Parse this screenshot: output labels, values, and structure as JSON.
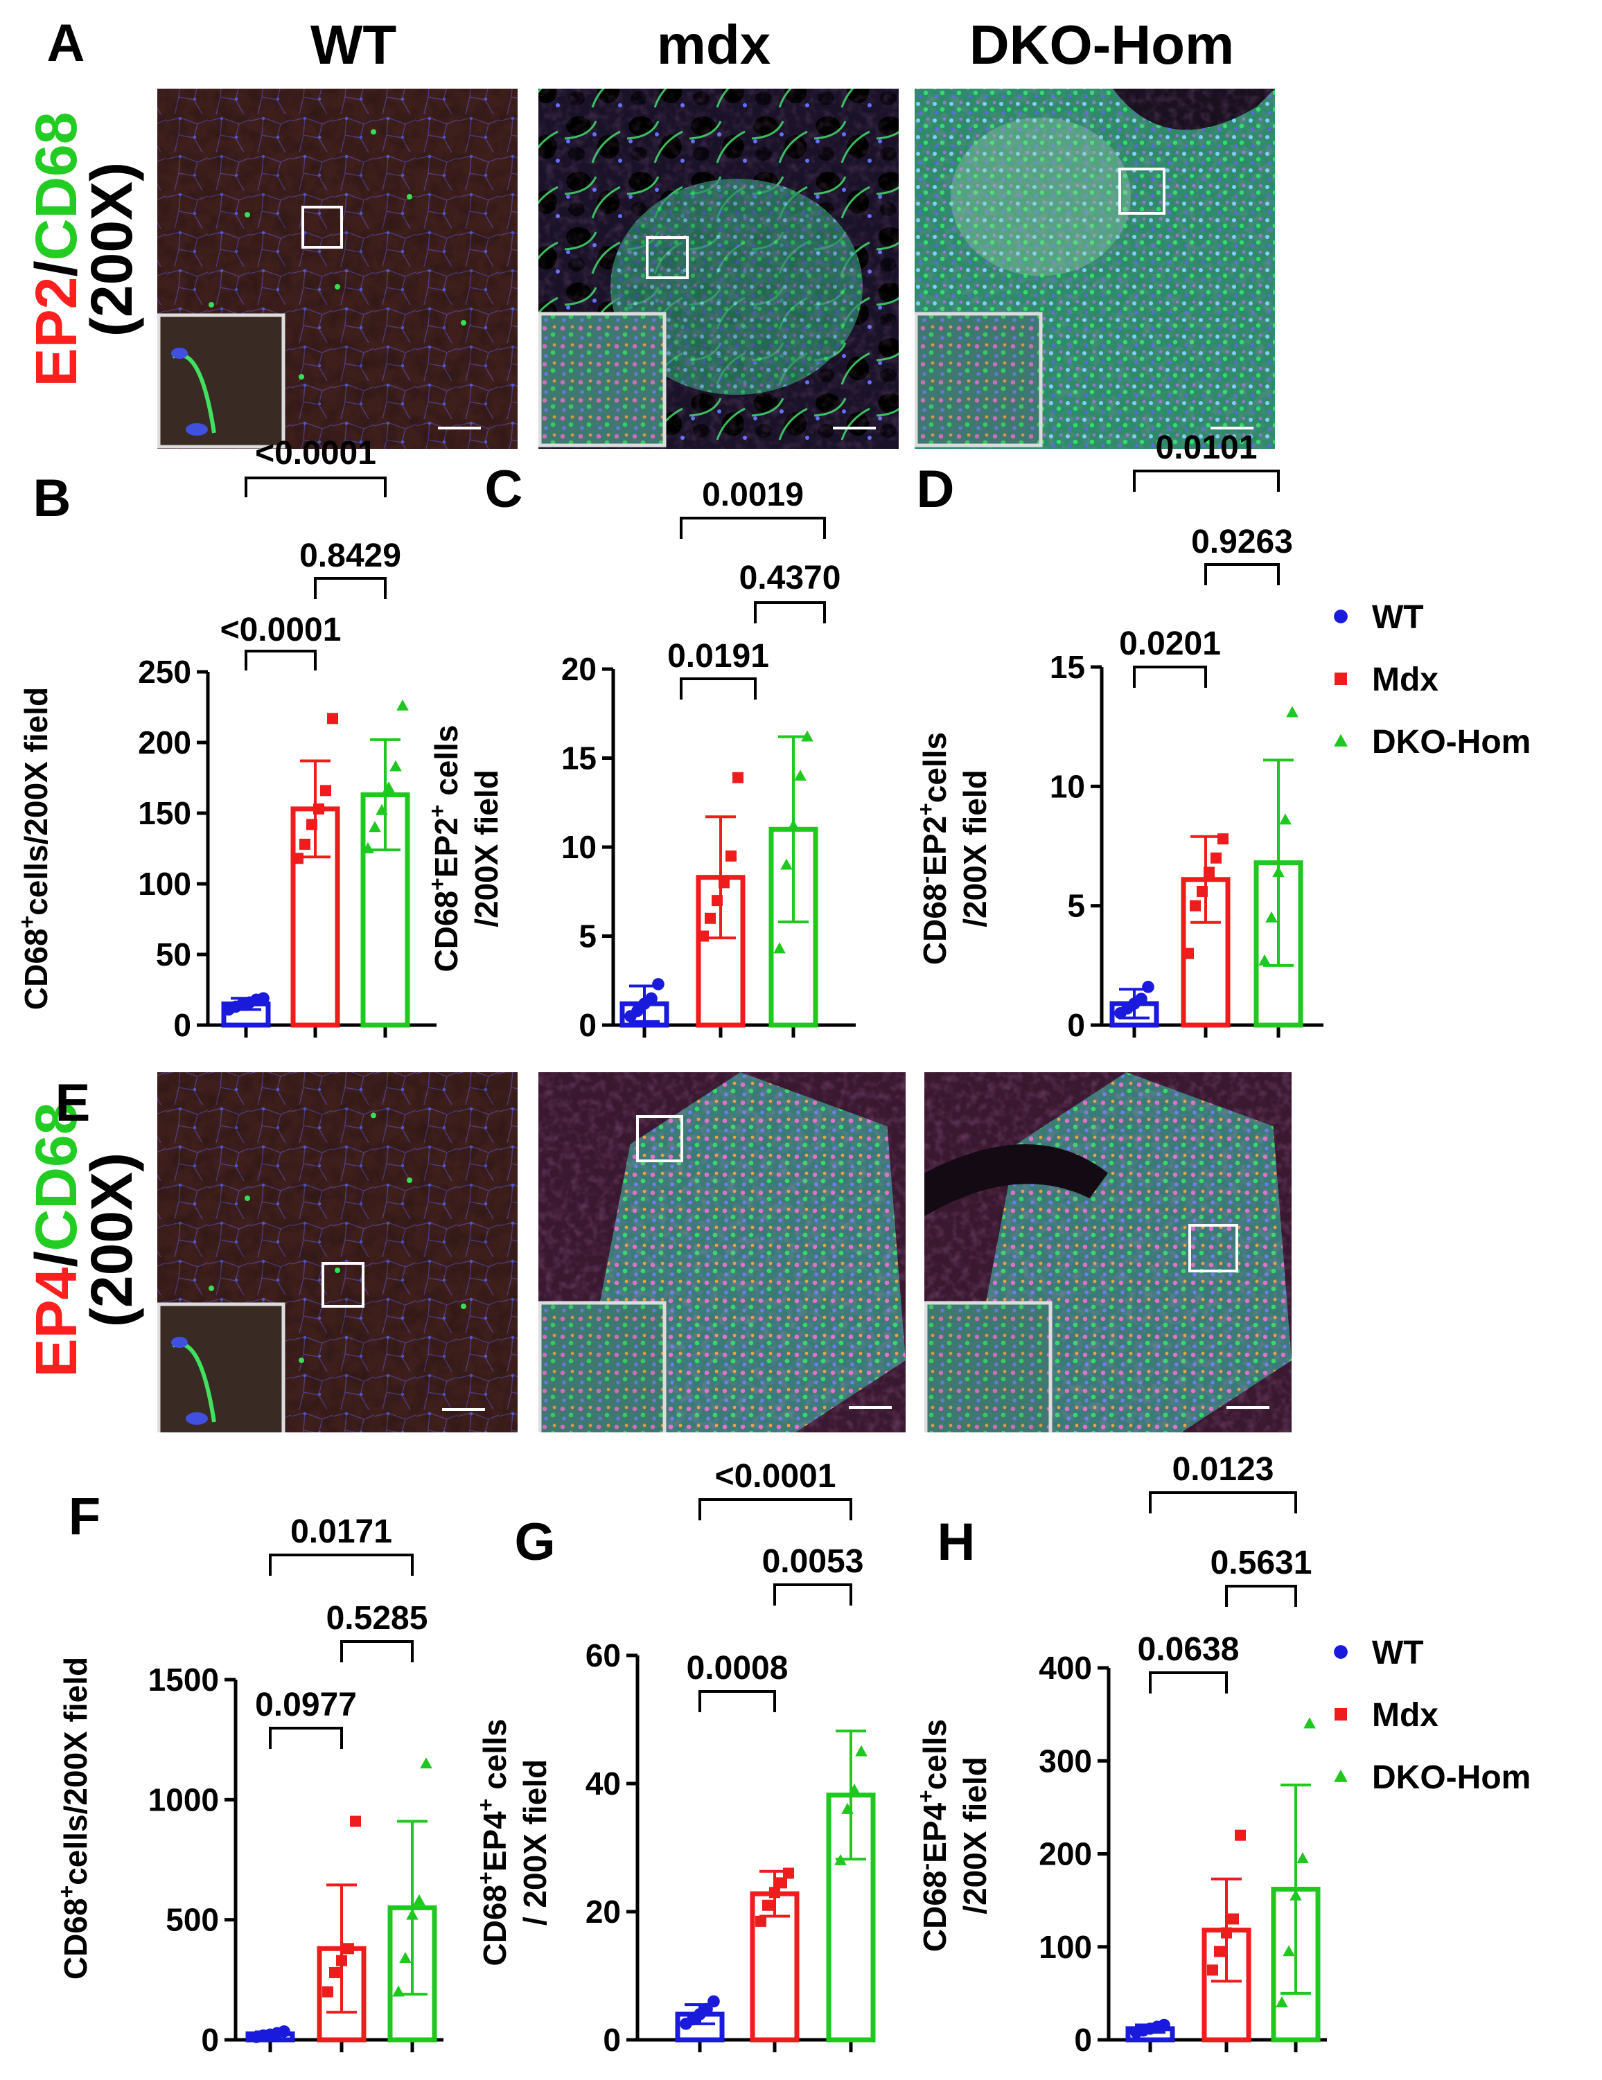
{
  "colors": {
    "WT": "#1a1adc",
    "Mdx": "#ee1c1c",
    "DKO-Hom": "#1ec81e",
    "red": "#ff1f1f",
    "green": "#22cc22",
    "frame": "#dddddd",
    "scale_bar": "#ffffff"
  },
  "header": {
    "panel_A": "A",
    "col_wt": "WT",
    "col_mdx": "mdx",
    "col_dko": "DKO-Hom"
  },
  "row_a": {
    "panel": "A",
    "stain_a": "EP2",
    "slash": "/",
    "stain_b": "CD68",
    "mag": "(200X)"
  },
  "row_e": {
    "panel": "E",
    "stain_a": "EP4",
    "slash": "/",
    "stain_b": "CD68",
    "mag": "(200X)"
  },
  "micrographs": [
    {
      "row": "EP2/CD68",
      "group": "WT",
      "tissue": "normal muscle, sparse CD68 staining"
    },
    {
      "row": "EP2/CD68",
      "group": "mdx",
      "tissue": "inflamed muscle, dense CD68 staining"
    },
    {
      "row": "EP2/CD68",
      "group": "DKO-Hom",
      "tissue": "inflamed muscle, very dense CD68 staining"
    },
    {
      "row": "EP4/CD68",
      "group": "WT",
      "tissue": "normal muscle, sparse CD68 staining"
    },
    {
      "row": "EP4/CD68",
      "group": "mdx",
      "tissue": "inflamed muscle, dense CD68 and EP4 staining"
    },
    {
      "row": "EP4/CD68",
      "group": "DKO-Hom",
      "tissue": "inflamed muscle, dense CD68 and EP4 staining"
    }
  ],
  "legends": [
    {
      "items": [
        {
          "name": "WT",
          "marker": "circle"
        },
        {
          "name": "Mdx",
          "marker": "square"
        },
        {
          "name": "DKO-Hom",
          "marker": "triangle"
        }
      ]
    },
    {
      "items": [
        {
          "name": "WT",
          "marker": "circle"
        },
        {
          "name": "Mdx",
          "marker": "square"
        },
        {
          "name": "DKO-Hom",
          "marker": "triangle"
        }
      ]
    }
  ],
  "chart_data": [
    {
      "panel": "B",
      "type": "bar",
      "categories": [
        "WT",
        "Mdx",
        "DKO-Hom"
      ],
      "ylabel_parts": [
        {
          "t": "CD68"
        },
        {
          "t": "+",
          "sup": true
        },
        {
          "t": "cells/200X field"
        }
      ],
      "ylim": [
        0,
        250
      ],
      "ticks": [
        0,
        50,
        100,
        150,
        200,
        250
      ],
      "series": [
        {
          "name": "WT",
          "mean": 15,
          "sd": 4,
          "points": [
            11,
            13,
            15,
            16,
            18,
            19
          ]
        },
        {
          "name": "Mdx",
          "mean": 153,
          "sd": 34,
          "points": [
            118,
            128,
            142,
            153,
            166,
            217
          ]
        },
        {
          "name": "DKO-Hom",
          "mean": 163,
          "sd": 39,
          "points": [
            125,
            140,
            152,
            168,
            183,
            226
          ]
        }
      ],
      "pvalues": [
        {
          "label": "<0.0001",
          "from": 0,
          "to": 1
        },
        {
          "label": "0.8429",
          "from": 1,
          "to": 2
        },
        {
          "label": "<0.0001",
          "from": 0,
          "to": 2
        }
      ]
    },
    {
      "panel": "C",
      "type": "bar",
      "categories": [
        "WT",
        "Mdx",
        "DKO-Hom"
      ],
      "ylabel_parts": [
        {
          "t": "CD68"
        },
        {
          "t": "+",
          "sup": true
        },
        {
          "t": "EP2"
        },
        {
          "t": "+",
          "sup": true
        },
        {
          "t": " cells"
        }
      ],
      "ylabel2": "/200X field",
      "ylim": [
        0,
        20
      ],
      "ticks": [
        0,
        5,
        10,
        15,
        20
      ],
      "series": [
        {
          "name": "WT",
          "mean": 1.2,
          "sd": 1.0,
          "points": [
            0.5,
            0.8,
            1.2,
            1.5,
            2.3
          ]
        },
        {
          "name": "Mdx",
          "mean": 8.3,
          "sd": 3.4,
          "points": [
            5.0,
            6.0,
            7.0,
            8.0,
            9.5,
            13.9
          ]
        },
        {
          "name": "DKO-Hom",
          "mean": 11.0,
          "sd": 5.2,
          "points": [
            4.3,
            9.0,
            11.2,
            14.0,
            16.2
          ]
        }
      ],
      "pvalues": [
        {
          "label": "0.0191",
          "from": 0,
          "to": 1
        },
        {
          "label": "0.4370",
          "from": 1,
          "to": 2
        },
        {
          "label": "0.0019",
          "from": 0,
          "to": 2
        }
      ]
    },
    {
      "panel": "D",
      "type": "bar",
      "categories": [
        "WT",
        "Mdx",
        "DKO-Hom"
      ],
      "ylabel_parts": [
        {
          "t": "CD68"
        },
        {
          "t": "-",
          "sup": true
        },
        {
          "t": "EP2"
        },
        {
          "t": "+",
          "sup": true
        },
        {
          "t": "cells"
        }
      ],
      "ylabel2": "/200X field",
      "ylim": [
        0,
        15
      ],
      "ticks": [
        0,
        5,
        10,
        15
      ],
      "series": [
        {
          "name": "WT",
          "mean": 0.9,
          "sd": 0.6,
          "points": [
            0.5,
            0.7,
            0.9,
            1.1,
            1.6
          ]
        },
        {
          "name": "Mdx",
          "mean": 6.1,
          "sd": 1.8,
          "points": [
            3.0,
            5.0,
            5.6,
            6.4,
            7.0,
            7.8
          ]
        },
        {
          "name": "DKO-Hom",
          "mean": 6.8,
          "sd": 4.3,
          "points": [
            2.7,
            4.5,
            6.4,
            8.6,
            13.1
          ]
        }
      ],
      "pvalues": [
        {
          "label": "0.0201",
          "from": 0,
          "to": 1
        },
        {
          "label": "0.9263",
          "from": 1,
          "to": 2
        },
        {
          "label": "0.0101",
          "from": 0,
          "to": 2
        }
      ]
    },
    {
      "panel": "F",
      "type": "bar",
      "categories": [
        "WT",
        "Mdx",
        "DKO-Hom"
      ],
      "ylabel_parts": [
        {
          "t": "CD68"
        },
        {
          "t": "+",
          "sup": true
        },
        {
          "t": "cells/200X field"
        }
      ],
      "ylim": [
        0,
        1500
      ],
      "ticks": [
        0,
        500,
        1000,
        1500
      ],
      "series": [
        {
          "name": "WT",
          "mean": 25,
          "sd": 8,
          "points": [
            12,
            18,
            22,
            28,
            35
          ]
        },
        {
          "name": "Mdx",
          "mean": 380,
          "sd": 265,
          "points": [
            200,
            280,
            330,
            380,
            910
          ]
        },
        {
          "name": "DKO-Hom",
          "mean": 550,
          "sd": 360,
          "points": [
            200,
            340,
            520,
            580,
            1150
          ]
        }
      ],
      "pvalues": [
        {
          "label": "0.0977",
          "from": 0,
          "to": 1
        },
        {
          "label": "0.5285",
          "from": 1,
          "to": 2
        },
        {
          "label": "0.0171",
          "from": 0,
          "to": 2
        }
      ]
    },
    {
      "panel": "G",
      "type": "bar",
      "categories": [
        "WT",
        "Mdx",
        "DKO-Hom"
      ],
      "ylabel_parts": [
        {
          "t": "CD68"
        },
        {
          "t": "+",
          "sup": true
        },
        {
          "t": "EP4"
        },
        {
          "t": "+",
          "sup": true
        },
        {
          "t": " cells"
        }
      ],
      "ylabel2": "/ 200X field",
      "ylim": [
        0,
        60
      ],
      "ticks": [
        0,
        20,
        40,
        60
      ],
      "series": [
        {
          "name": "WT",
          "mean": 4,
          "sd": 1.5,
          "points": [
            2.5,
            3.2,
            4.0,
            4.8,
            6.0
          ]
        },
        {
          "name": "Mdx",
          "mean": 22.8,
          "sd": 3.5,
          "points": [
            18.5,
            21.0,
            23.0,
            24.5,
            26.0
          ]
        },
        {
          "name": "DKO-Hom",
          "mean": 38.2,
          "sd": 10,
          "points": [
            28.0,
            36.0,
            39.0,
            45.0
          ]
        }
      ],
      "pvalues": [
        {
          "label": "0.0008",
          "from": 0,
          "to": 1
        },
        {
          "label": "0.0053",
          "from": 1,
          "to": 2
        },
        {
          "label": "<0.0001",
          "from": 0,
          "to": 2
        }
      ]
    },
    {
      "panel": "H",
      "type": "bar",
      "categories": [
        "WT",
        "Mdx",
        "DKO-Hom"
      ],
      "ylabel_parts": [
        {
          "t": "CD68"
        },
        {
          "t": "-",
          "sup": true
        },
        {
          "t": "EP4"
        },
        {
          "t": "+",
          "sup": true
        },
        {
          "t": "cells"
        }
      ],
      "ylabel2": "/200X field",
      "ylim": [
        0,
        400
      ],
      "ticks": [
        0,
        100,
        200,
        300,
        400
      ],
      "series": [
        {
          "name": "WT",
          "mean": 12,
          "sd": 4,
          "points": [
            8,
            10,
            12,
            14,
            16
          ]
        },
        {
          "name": "Mdx",
          "mean": 118,
          "sd": 55,
          "points": [
            75,
            95,
            115,
            130,
            220
          ]
        },
        {
          "name": "DKO-Hom",
          "mean": 162,
          "sd": 112,
          "points": [
            40,
            95,
            155,
            195,
            340
          ]
        }
      ],
      "pvalues": [
        {
          "label": "0.0638",
          "from": 0,
          "to": 1
        },
        {
          "label": "0.5631",
          "from": 1,
          "to": 2
        },
        {
          "label": "0.0123",
          "from": 0,
          "to": 2
        }
      ]
    }
  ]
}
